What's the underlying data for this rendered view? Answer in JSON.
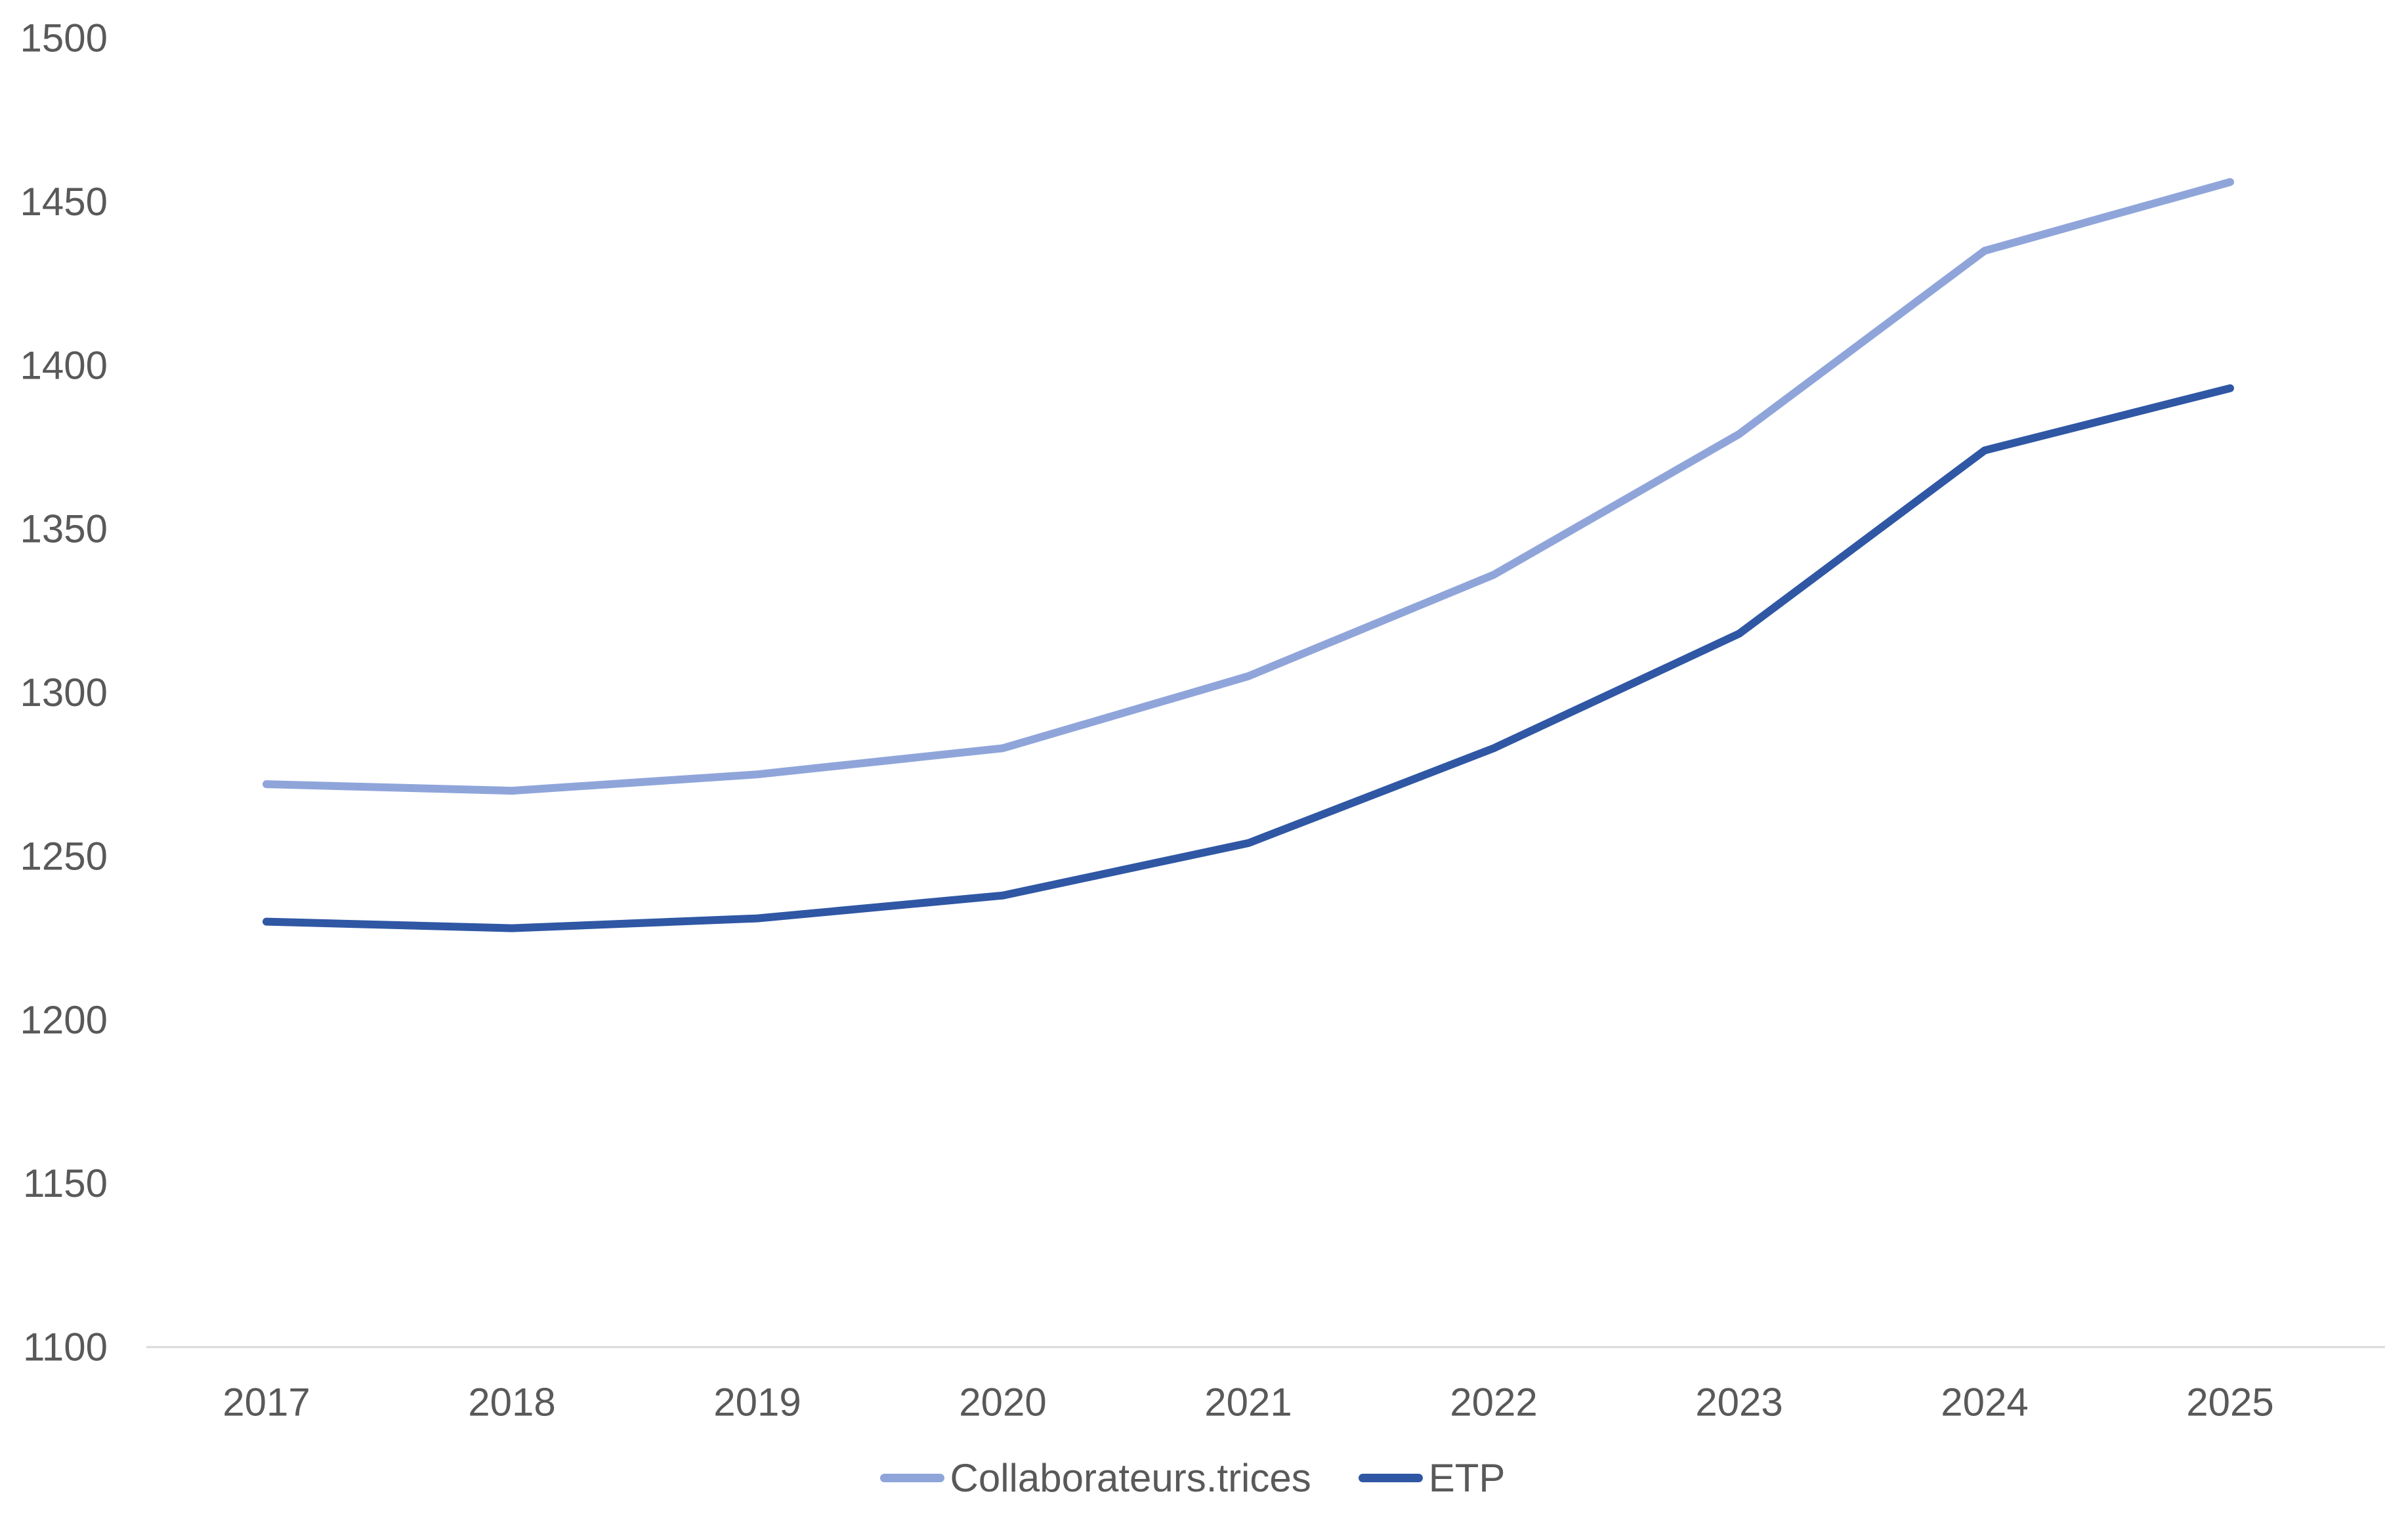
{
  "colors": {
    "background": "#FFFFFF",
    "text": "#595959",
    "axis_line": "#D9D9D9",
    "series_light": "#8FA5DA",
    "series_dark": "#2F57A4"
  },
  "chart_data": {
    "type": "line",
    "title": "",
    "xlabel": "",
    "ylabel": "",
    "x": [
      2017,
      2018,
      2019,
      2020,
      2021,
      2022,
      2023,
      2024,
      2025
    ],
    "series": [
      {
        "name": "Collaborateurs.trices",
        "color": "#8FA5DA",
        "values": [
          1272,
          1270,
          1275,
          1283,
          1305,
          1336,
          1379,
          1435,
          1456
        ]
      },
      {
        "name": "ETP",
        "color": "#2F57A4",
        "values": [
          1230,
          1228,
          1231,
          1238,
          1254,
          1283,
          1318,
          1374,
          1393
        ]
      }
    ],
    "ylim": [
      1100,
      1500
    ],
    "yticks": [
      1100,
      1150,
      1200,
      1250,
      1300,
      1350,
      1400,
      1450,
      1500
    ],
    "grid": false,
    "legend_position": "bottom"
  }
}
